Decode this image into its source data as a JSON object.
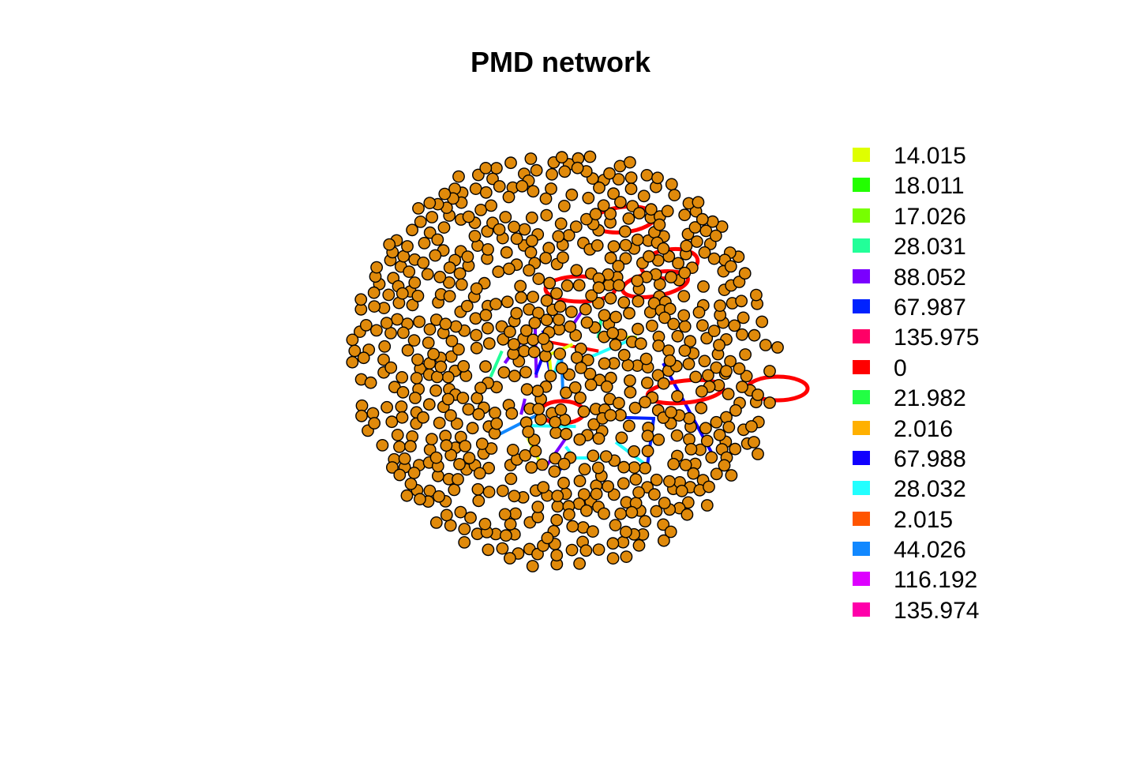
{
  "title": "PMD network",
  "node_color": "#e08a0b",
  "legend": {
    "items": [
      {
        "label": "14.015",
        "color": "#dfff00"
      },
      {
        "label": "18.011",
        "color": "#22ff00"
      },
      {
        "label": "17.026",
        "color": "#77ff00"
      },
      {
        "label": "28.031",
        "color": "#22ff99"
      },
      {
        "label": "88.052",
        "color": "#7a00ff"
      },
      {
        "label": "67.987",
        "color": "#0022ff"
      },
      {
        "label": "135.975",
        "color": "#ff0066"
      },
      {
        "label": "0",
        "color": "#ff0000"
      },
      {
        "label": "21.982",
        "color": "#22ff44"
      },
      {
        "label": "2.016",
        "color": "#ffb000"
      },
      {
        "label": "67.988",
        "color": "#1100ff"
      },
      {
        "label": "28.032",
        "color": "#22ffff"
      },
      {
        "label": "2.015",
        "color": "#ff5500"
      },
      {
        "label": "44.026",
        "color": "#1188ff"
      },
      {
        "label": "116.192",
        "color": "#dd00ff"
      },
      {
        "label": "135.974",
        "color": "#ff00aa"
      }
    ]
  }
}
